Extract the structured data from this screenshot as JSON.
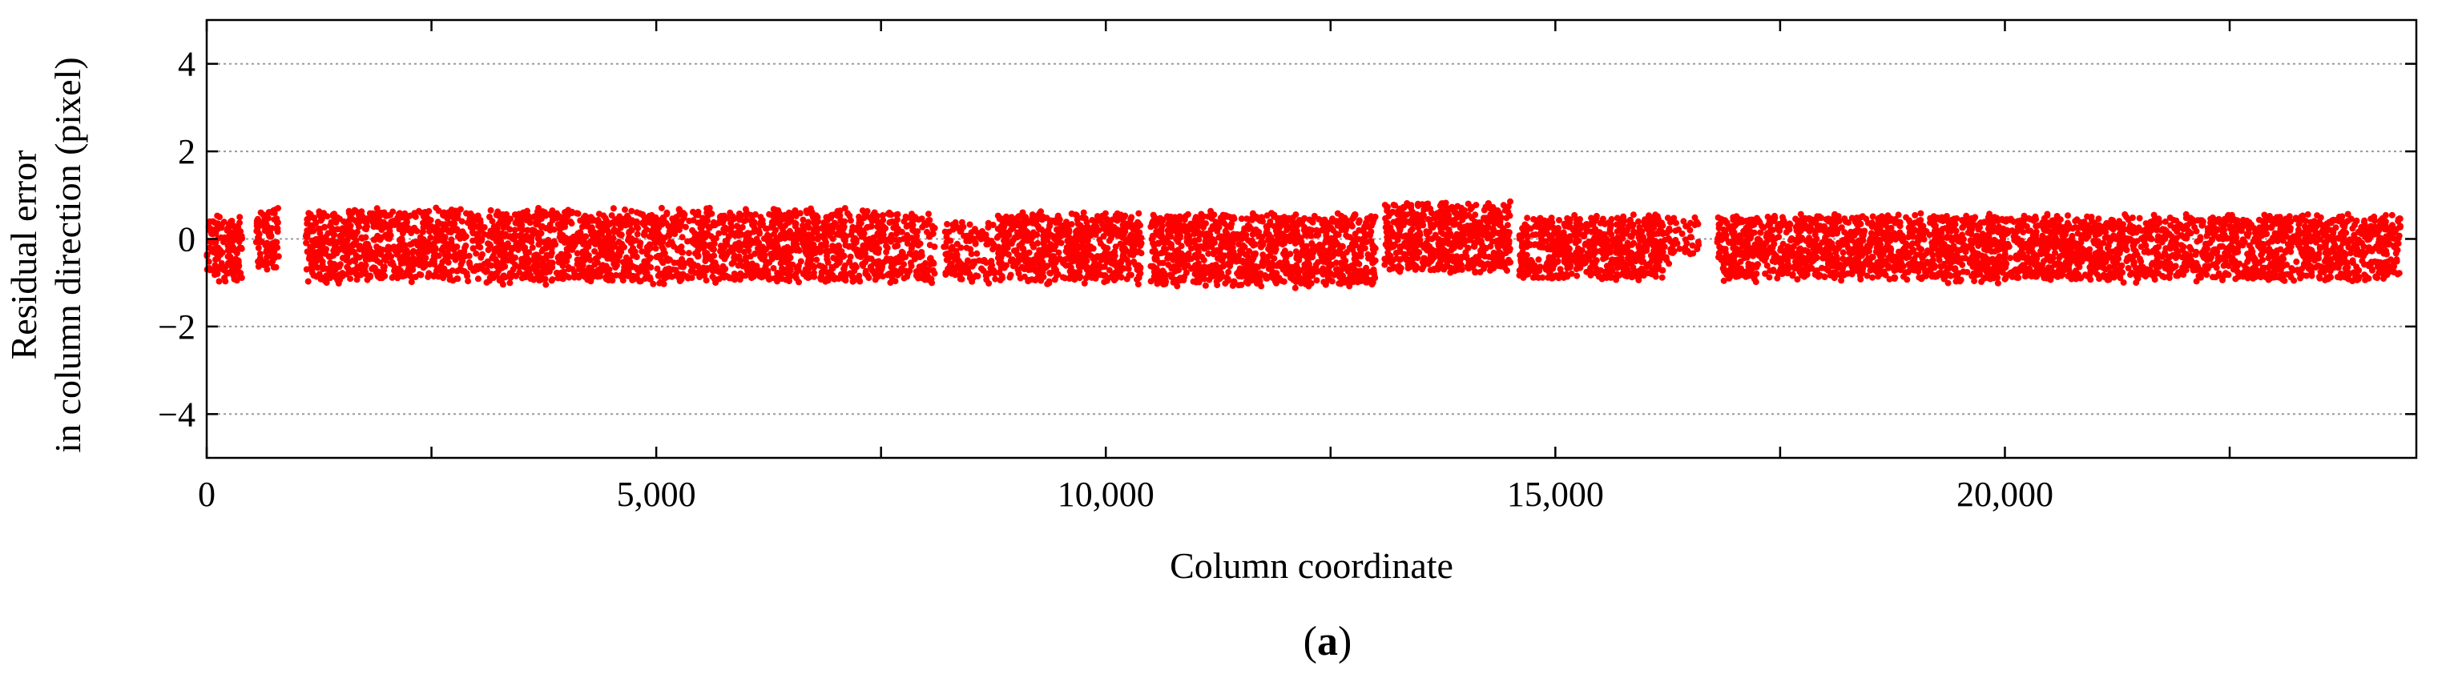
{
  "chart_data": {
    "type": "scatter",
    "xlabel": "Column coordinate",
    "ylabel_lines": [
      "Residual error",
      "in column direction (pixel)"
    ],
    "xlim": [
      0,
      24576
    ],
    "ylim": [
      -5,
      5
    ],
    "x_ticks": [
      {
        "value": 0,
        "label": "0"
      },
      {
        "value": 5000,
        "label": "5,000"
      },
      {
        "value": 10000,
        "label": "10,000"
      },
      {
        "value": 15000,
        "label": "15,000"
      },
      {
        "value": 20000,
        "label": "20,000"
      }
    ],
    "x_minor_ticks": [
      2500,
      7500,
      12500,
      17500,
      22500
    ],
    "y_ticks": [
      {
        "value": 4,
        "label": "4"
      },
      {
        "value": 2,
        "label": "2"
      },
      {
        "value": 0,
        "label": "0"
      },
      {
        "value": -2,
        "label": "−2"
      },
      {
        "value": -4,
        "label": "−4"
      }
    ],
    "grid": "horizontal dotted at y ticks",
    "marker_color": "#ff0000",
    "series": [
      {
        "segments": [
          {
            "x": [
              0,
              400
            ],
            "y_center": -0.2,
            "y_spread": 0.85,
            "points": 140
          },
          {
            "x": [
              550,
              800
            ],
            "y_center": 0.0,
            "y_spread": 0.8,
            "points": 90
          },
          {
            "x": [
              1100,
              7600
            ],
            "y_center": -0.15,
            "y_spread": 0.95,
            "points": 2400
          },
          {
            "x": [
              7600,
              8100
            ],
            "y_center": -0.2,
            "y_spread": 0.9,
            "points": 150
          },
          {
            "x": [
              8200,
              8800
            ],
            "y_center": -0.3,
            "y_spread": 0.8,
            "points": 140
          },
          {
            "x": [
              8800,
              10400
            ],
            "y_center": -0.2,
            "y_spread": 0.9,
            "points": 650
          },
          {
            "x": [
              10500,
              13000
            ],
            "y_center": -0.25,
            "y_spread": 0.95,
            "points": 1000
          },
          {
            "x": [
              13100,
              14500
            ],
            "y_center": 0.05,
            "y_spread": 0.9,
            "points": 600
          },
          {
            "x": [
              14600,
              16200
            ],
            "y_center": -0.2,
            "y_spread": 0.8,
            "points": 600
          },
          {
            "x": [
              16000,
              16600
            ],
            "y_center": 0.0,
            "y_spread": 0.6,
            "points": 80
          },
          {
            "x": [
              16800,
              24400
            ],
            "y_center": -0.2,
            "y_spread": 0.85,
            "points": 2800
          }
        ]
      }
    ],
    "caption": {
      "open": "(",
      "letter": "a",
      "close": ")"
    }
  }
}
